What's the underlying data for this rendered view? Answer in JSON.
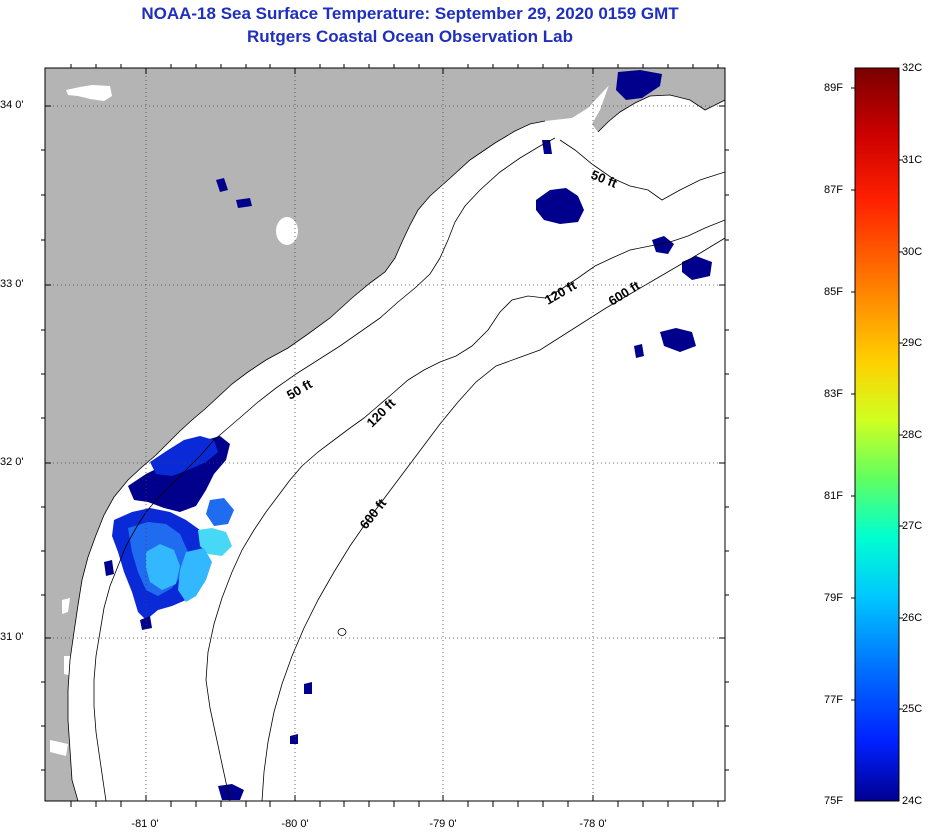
{
  "title": "NOAA-18 Sea Surface Temperature:  September 29, 2020 0159 GMT",
  "subtitle": "Rutgers Coastal Ocean Observation Lab",
  "lat_labels": [
    "34 0'",
    "33 0'",
    "32 0'",
    "31 0'"
  ],
  "lon_labels": [
    "-81 0'",
    "-80 0'",
    "-79 0'",
    "-78 0'"
  ],
  "contours": {
    "c50_a": "50 ft",
    "c50_b": "50 ft",
    "c120_a": "120 ft",
    "c120_b": "120 ft",
    "c600_a": "600 ft",
    "c600_b": "600 ft"
  },
  "colorbar": {
    "fahrenheit": [
      "89F",
      "87F",
      "85F",
      "83F",
      "81F",
      "79F",
      "77F",
      "75F"
    ],
    "celsius": [
      "32C",
      "31C",
      "30C",
      "29C",
      "28C",
      "27C",
      "26C",
      "25C",
      "24C"
    ],
    "gradient": [
      "#7a0000",
      "#cc0000",
      "#ff2000",
      "#ff8000",
      "#ffd000",
      "#d0ff20",
      "#60ff60",
      "#00ffd0",
      "#00c8ff",
      "#0070ff",
      "#0020ff",
      "#000090"
    ]
  },
  "colors": {
    "land": "#b4b4b4",
    "title": "#1f2fbf",
    "sst_patches": [
      "#00008c",
      "#0a2ad8",
      "#1f6cf0",
      "#33b8ff",
      "#46d8f5"
    ]
  }
}
